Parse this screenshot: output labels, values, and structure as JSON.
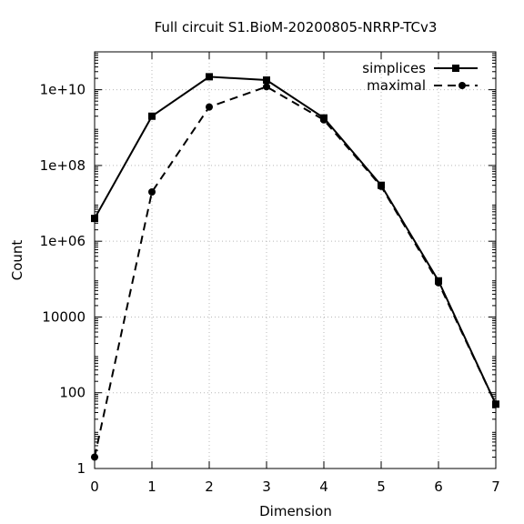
{
  "chart_data": {
    "type": "line",
    "title": "Full circuit S1.BioM-20200805-NRRP-TCv3",
    "xlabel": "Dimension",
    "ylabel": "Count",
    "x_scale": "linear",
    "y_scale": "log",
    "xlim": [
      0,
      7
    ],
    "ylim": [
      1,
      100000000000.0
    ],
    "grid": true,
    "legend_position": "top-right",
    "x_ticks": [
      {
        "value": 0,
        "label": "0"
      },
      {
        "value": 1,
        "label": "1"
      },
      {
        "value": 2,
        "label": "2"
      },
      {
        "value": 3,
        "label": "3"
      },
      {
        "value": 4,
        "label": "4"
      },
      {
        "value": 5,
        "label": "5"
      },
      {
        "value": 6,
        "label": "6"
      },
      {
        "value": 7,
        "label": "7"
      }
    ],
    "y_ticks": [
      {
        "value": 1,
        "label": "1"
      },
      {
        "value": 100,
        "label": "100"
      },
      {
        "value": 10000,
        "label": "10000"
      },
      {
        "value": 1000000,
        "label": "1e+06"
      },
      {
        "value": 100000000,
        "label": "1e+08"
      },
      {
        "value": 10000000000,
        "label": "1e+10"
      }
    ],
    "series": [
      {
        "name": "simplices",
        "style": "solid",
        "marker": "square",
        "color": "#000000",
        "x": [
          0,
          1,
          2,
          3,
          4,
          5,
          6,
          7
        ],
        "y": [
          4000000,
          2000000000,
          22000000000,
          18000000000,
          1800000000,
          30000000,
          90000,
          50
        ]
      },
      {
        "name": "maximal",
        "style": "dashed",
        "marker": "circle",
        "color": "#000000",
        "x": [
          0,
          1,
          2,
          3,
          4,
          5,
          6,
          7
        ],
        "y": [
          2,
          20000000,
          3500000000,
          12000000000,
          1600000000,
          28000000,
          80000,
          50
        ]
      }
    ]
  }
}
